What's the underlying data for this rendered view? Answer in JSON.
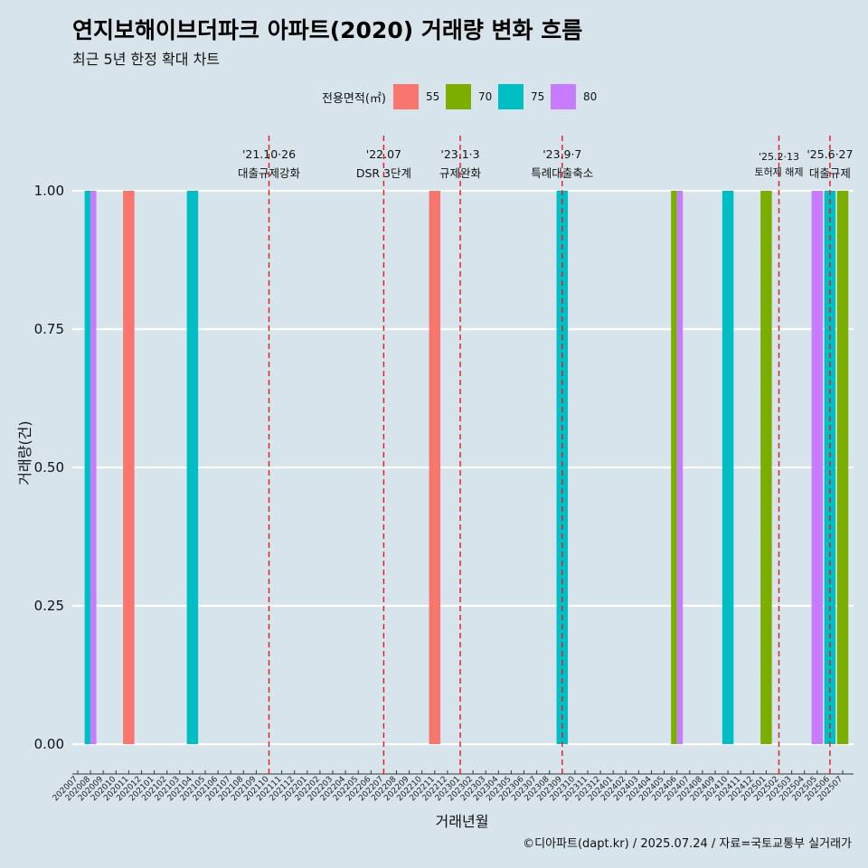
{
  "title": "연지보해이브더파크 아파트(2020) 거래량 변화 흐름",
  "subtitle": "최근 5년 한정 확대 차트",
  "caption": "©디아파트(dapt.kr) / 2025.07.24 / 자료=국토교통부 실거래가",
  "legend": {
    "title": "전용면적(㎡)",
    "items": [
      {
        "label": "55",
        "color": "#f8766d"
      },
      {
        "label": "70",
        "color": "#7cae00"
      },
      {
        "label": "75",
        "color": "#00bfc4"
      },
      {
        "label": "80",
        "color": "#c77cff"
      }
    ]
  },
  "chart_data": {
    "type": "bar",
    "xlabel": "거래년월",
    "ylabel": "거래량(건)",
    "ylim": [
      0,
      1
    ],
    "y_ticks": [
      "0.00",
      "0.25",
      "0.50",
      "0.75",
      "1.00"
    ],
    "grid": true,
    "legend_position": "top",
    "categories": [
      "202007",
      "202008",
      "202009",
      "202010",
      "202011",
      "202012",
      "202101",
      "202102",
      "202103",
      "202104",
      "202105",
      "202106",
      "202107",
      "202108",
      "202109",
      "202110",
      "202111",
      "202112",
      "202201",
      "202202",
      "202203",
      "202204",
      "202205",
      "202206",
      "202207",
      "202208",
      "202209",
      "202210",
      "202211",
      "202212",
      "202301",
      "202302",
      "202303",
      "202304",
      "202305",
      "202306",
      "202307",
      "202308",
      "202309",
      "202310",
      "202311",
      "202312",
      "202401",
      "202402",
      "202403",
      "202404",
      "202405",
      "202406",
      "202407",
      "202408",
      "202409",
      "202410",
      "202411",
      "202412",
      "202501",
      "202502",
      "202503",
      "202504",
      "202505",
      "202506",
      "202507"
    ],
    "bars": [
      {
        "x": "202008",
        "series": "75",
        "value": 1
      },
      {
        "x": "202008",
        "series": "80",
        "value": 1
      },
      {
        "x": "202011",
        "series": "55",
        "value": 1
      },
      {
        "x": "202104",
        "series": "75",
        "value": 1
      },
      {
        "x": "202211",
        "series": "55",
        "value": 1
      },
      {
        "x": "202309",
        "series": "75",
        "value": 1
      },
      {
        "x": "202406",
        "series": "70",
        "value": 1
      },
      {
        "x": "202406",
        "series": "80",
        "value": 1
      },
      {
        "x": "202410",
        "series": "75",
        "value": 1
      },
      {
        "x": "202501",
        "series": "70",
        "value": 1
      },
      {
        "x": "202505",
        "series": "80",
        "value": 1
      },
      {
        "x": "202506",
        "series": "75",
        "value": 1
      },
      {
        "x": "202507",
        "series": "70",
        "value": 1
      }
    ],
    "annotations": [
      {
        "x": "202110",
        "date": "'21.10·26",
        "label": "대출규제강화"
      },
      {
        "x": "202207",
        "date": "'22.07",
        "label": "DSR 3단계"
      },
      {
        "x": "202301",
        "date": "'23.1·3",
        "label": "규제완화"
      },
      {
        "x": "202309",
        "date": "'23.9·7",
        "label": "특례대출축소"
      },
      {
        "x": "202502",
        "date": "'25.2·13",
        "label": "토허제 해제"
      },
      {
        "x": "202506",
        "date": "'25.6·27",
        "label": "대출규제"
      }
    ]
  }
}
